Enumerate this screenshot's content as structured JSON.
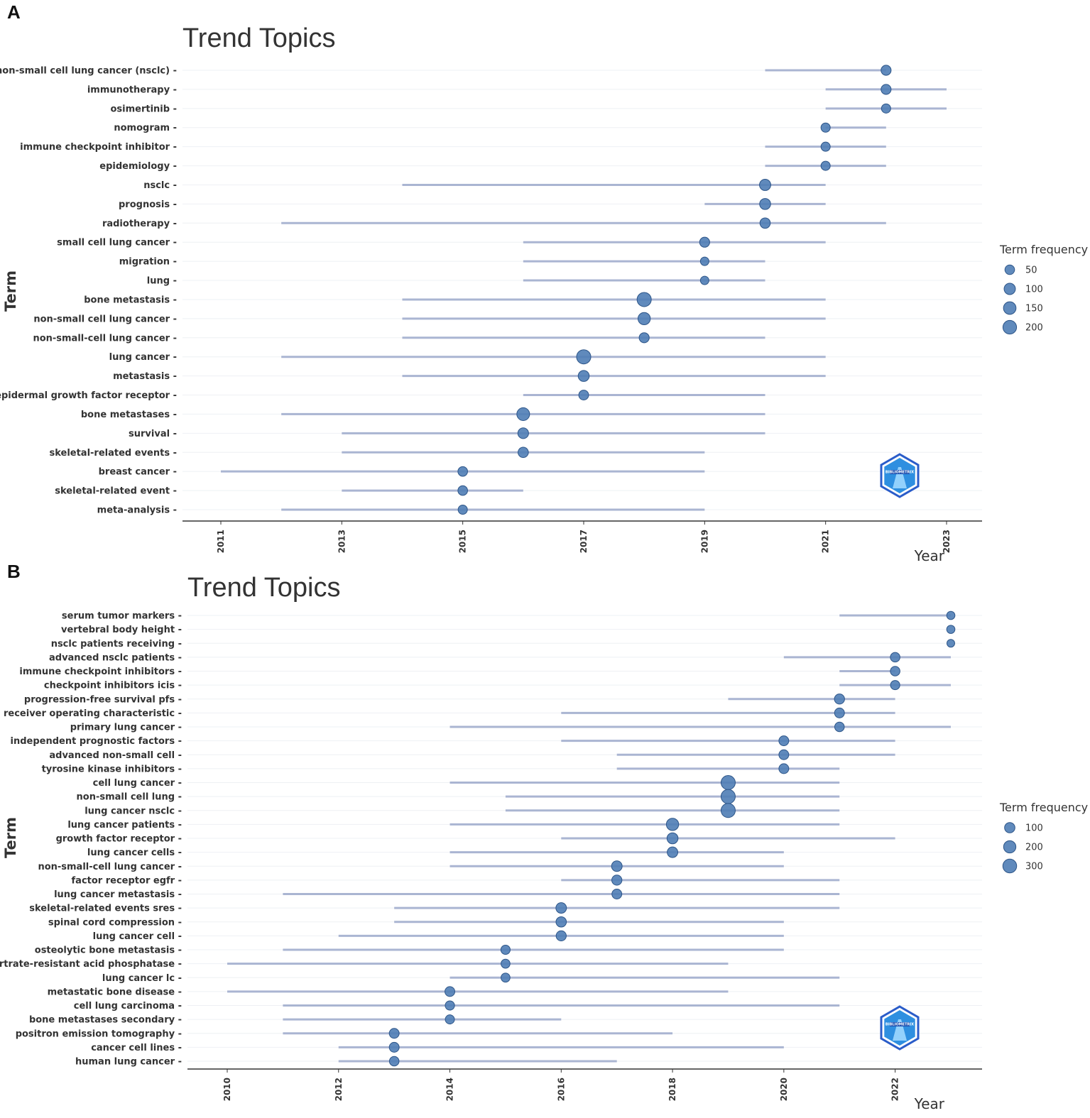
{
  "chart_data": [
    {
      "panel": "A",
      "type": "scatter",
      "title": "Trend Topics",
      "xlabel": "Year",
      "ylabel": "Term",
      "xlim": [
        2011,
        2023
      ],
      "x_ticks": [
        2011,
        2013,
        2015,
        2017,
        2019,
        2021,
        2023
      ],
      "legend": {
        "title": "Term frequency",
        "position": "right",
        "values": [
          50,
          100,
          150,
          200
        ]
      },
      "series": [
        {
          "term": "non-small cell lung cancer (nsclc)",
          "q1": 2020,
          "median": 2022,
          "q3": 2022,
          "freq": 60
        },
        {
          "term": "immunotherapy",
          "q1": 2021,
          "median": 2022,
          "q3": 2023,
          "freq": 60
        },
        {
          "term": "osimertinib",
          "q1": 2021,
          "median": 2022,
          "q3": 2023,
          "freq": 40
        },
        {
          "term": "nomogram",
          "q1": 2021,
          "median": 2021,
          "q3": 2022,
          "freq": 40
        },
        {
          "term": "immune checkpoint inhibitor",
          "q1": 2020,
          "median": 2021,
          "q3": 2022,
          "freq": 40
        },
        {
          "term": "epidemiology",
          "q1": 2020,
          "median": 2021,
          "q3": 2022,
          "freq": 40
        },
        {
          "term": "nsclc",
          "q1": 2014,
          "median": 2020,
          "q3": 2021,
          "freq": 100
        },
        {
          "term": "prognosis",
          "q1": 2019,
          "median": 2020,
          "q3": 2021,
          "freq": 90
        },
        {
          "term": "radiotherapy",
          "q1": 2012,
          "median": 2020,
          "q3": 2022,
          "freq": 70
        },
        {
          "term": "small cell lung cancer",
          "q1": 2016,
          "median": 2019,
          "q3": 2021,
          "freq": 60
        },
        {
          "term": "migration",
          "q1": 2016,
          "median": 2019,
          "q3": 2020,
          "freq": 25
        },
        {
          "term": "lung",
          "q1": 2016,
          "median": 2019,
          "q3": 2020,
          "freq": 25
        },
        {
          "term": "bone metastasis",
          "q1": 2014,
          "median": 2018,
          "q3": 2021,
          "freq": 230
        },
        {
          "term": "non-small cell lung cancer",
          "q1": 2014,
          "median": 2018,
          "q3": 2021,
          "freq": 140
        },
        {
          "term": "non-small-cell lung cancer",
          "q1": 2014,
          "median": 2018,
          "q3": 2020,
          "freq": 60
        },
        {
          "term": "lung cancer",
          "q1": 2012,
          "median": 2017,
          "q3": 2021,
          "freq": 230
        },
        {
          "term": "metastasis",
          "q1": 2014,
          "median": 2017,
          "q3": 2021,
          "freq": 90
        },
        {
          "term": "epidermal growth factor receptor",
          "q1": 2016,
          "median": 2017,
          "q3": 2020,
          "freq": 55
        },
        {
          "term": "bone metastases",
          "q1": 2012,
          "median": 2016,
          "q3": 2020,
          "freq": 160
        },
        {
          "term": "survival",
          "q1": 2013,
          "median": 2016,
          "q3": 2020,
          "freq": 80
        },
        {
          "term": "skeletal-related events",
          "q1": 2013,
          "median": 2016,
          "q3": 2019,
          "freq": 70
        },
        {
          "term": "breast cancer",
          "q1": 2011,
          "median": 2015,
          "q3": 2019,
          "freq": 50
        },
        {
          "term": "skeletal-related event",
          "q1": 2013,
          "median": 2015,
          "q3": 2016,
          "freq": 50
        },
        {
          "term": "meta-analysis",
          "q1": 2012,
          "median": 2015,
          "q3": 2019,
          "freq": 40
        }
      ]
    },
    {
      "panel": "B",
      "type": "scatter",
      "title": "Trend Topics",
      "xlabel": "Year",
      "ylabel": "Term",
      "xlim": [
        2010,
        2023
      ],
      "x_ticks": [
        2010,
        2012,
        2014,
        2016,
        2018,
        2020,
        2022
      ],
      "legend": {
        "title": "Term frequency",
        "position": "right",
        "values": [
          100,
          200,
          300
        ]
      },
      "series": [
        {
          "term": "serum tumor markers",
          "q1": 2021,
          "median": 2023,
          "q3": 2023,
          "freq": 30
        },
        {
          "term": "vertebral body height",
          "q1": 2023,
          "median": 2023,
          "q3": 2023,
          "freq": 30
        },
        {
          "term": "nsclc patients receiving",
          "q1": 2023,
          "median": 2023,
          "q3": 2023,
          "freq": 20
        },
        {
          "term": "advanced nsclc patients",
          "q1": 2020,
          "median": 2022,
          "q3": 2023,
          "freq": 70
        },
        {
          "term": "immune checkpoint inhibitors",
          "q1": 2021,
          "median": 2022,
          "q3": 2022,
          "freq": 70
        },
        {
          "term": "checkpoint inhibitors icis",
          "q1": 2021,
          "median": 2022,
          "q3": 2023,
          "freq": 60
        },
        {
          "term": "progression-free survival pfs",
          "q1": 2019,
          "median": 2021,
          "q3": 2022,
          "freq": 90
        },
        {
          "term": "receiver operating characteristic",
          "q1": 2016,
          "median": 2021,
          "q3": 2022,
          "freq": 80
        },
        {
          "term": "primary lung cancer",
          "q1": 2014,
          "median": 2021,
          "q3": 2023,
          "freq": 70
        },
        {
          "term": "independent prognostic factors",
          "q1": 2016,
          "median": 2020,
          "q3": 2022,
          "freq": 80
        },
        {
          "term": "advanced non-small cell",
          "q1": 2017,
          "median": 2020,
          "q3": 2022,
          "freq": 80
        },
        {
          "term": "tyrosine kinase inhibitors",
          "q1": 2017,
          "median": 2020,
          "q3": 2021,
          "freq": 80
        },
        {
          "term": "cell lung cancer",
          "q1": 2014,
          "median": 2019,
          "q3": 2021,
          "freq": 330
        },
        {
          "term": "non-small cell lung",
          "q1": 2015,
          "median": 2019,
          "q3": 2021,
          "freq": 330
        },
        {
          "term": "lung cancer nsclc",
          "q1": 2015,
          "median": 2019,
          "q3": 2021,
          "freq": 330
        },
        {
          "term": "lung cancer patients",
          "q1": 2014,
          "median": 2018,
          "q3": 2021,
          "freq": 200
        },
        {
          "term": "growth factor receptor",
          "q1": 2016,
          "median": 2018,
          "q3": 2022,
          "freq": 130
        },
        {
          "term": "lung cancer cells",
          "q1": 2014,
          "median": 2018,
          "q3": 2020,
          "freq": 110
        },
        {
          "term": "non-small-cell lung cancer",
          "q1": 2014,
          "median": 2017,
          "q3": 2020,
          "freq": 110
        },
        {
          "term": "factor receptor egfr",
          "q1": 2016,
          "median": 2017,
          "q3": 2021,
          "freq": 90
        },
        {
          "term": "lung cancer metastasis",
          "q1": 2011,
          "median": 2017,
          "q3": 2021,
          "freq": 80
        },
        {
          "term": "skeletal-related events sres",
          "q1": 2013,
          "median": 2016,
          "q3": 2021,
          "freq": 110
        },
        {
          "term": "spinal cord compression",
          "q1": 2013,
          "median": 2016,
          "q3": 2020,
          "freq": 100
        },
        {
          "term": "lung cancer cell",
          "q1": 2012,
          "median": 2016,
          "q3": 2020,
          "freq": 90
        },
        {
          "term": "osteolytic bone metastasis",
          "q1": 2011,
          "median": 2015,
          "q3": 2020,
          "freq": 60
        },
        {
          "term": "tartrate-resistant acid phosphatase",
          "q1": 2010,
          "median": 2015,
          "q3": 2019,
          "freq": 50
        },
        {
          "term": "lung cancer lc",
          "q1": 2014,
          "median": 2015,
          "q3": 2021,
          "freq": 50
        },
        {
          "term": "metastatic bone disease",
          "q1": 2010,
          "median": 2014,
          "q3": 2019,
          "freq": 80
        },
        {
          "term": "cell lung carcinoma",
          "q1": 2011,
          "median": 2014,
          "q3": 2021,
          "freq": 60
        },
        {
          "term": "bone metastases secondary",
          "q1": 2011,
          "median": 2014,
          "q3": 2016,
          "freq": 55
        },
        {
          "term": "positron emission tomography",
          "q1": 2011,
          "median": 2013,
          "q3": 2018,
          "freq": 80
        },
        {
          "term": "cancer cell lines",
          "q1": 2012,
          "median": 2013,
          "q3": 2020,
          "freq": 80
        },
        {
          "term": "human lung cancer",
          "q1": 2012,
          "median": 2013,
          "q3": 2017,
          "freq": 70
        }
      ]
    }
  ],
  "panels": {
    "a_letter": "A",
    "b_letter": "B"
  },
  "colors": {
    "point_fill": "#4f7db5",
    "point_stroke": "#2d5588",
    "segment": "#aab5d2",
    "gridline": "#eef0f4",
    "axis": "#333333"
  },
  "watermark": {
    "icon": "bibliometrix-logo-icon",
    "text": "BIBLIOMETRIX"
  }
}
